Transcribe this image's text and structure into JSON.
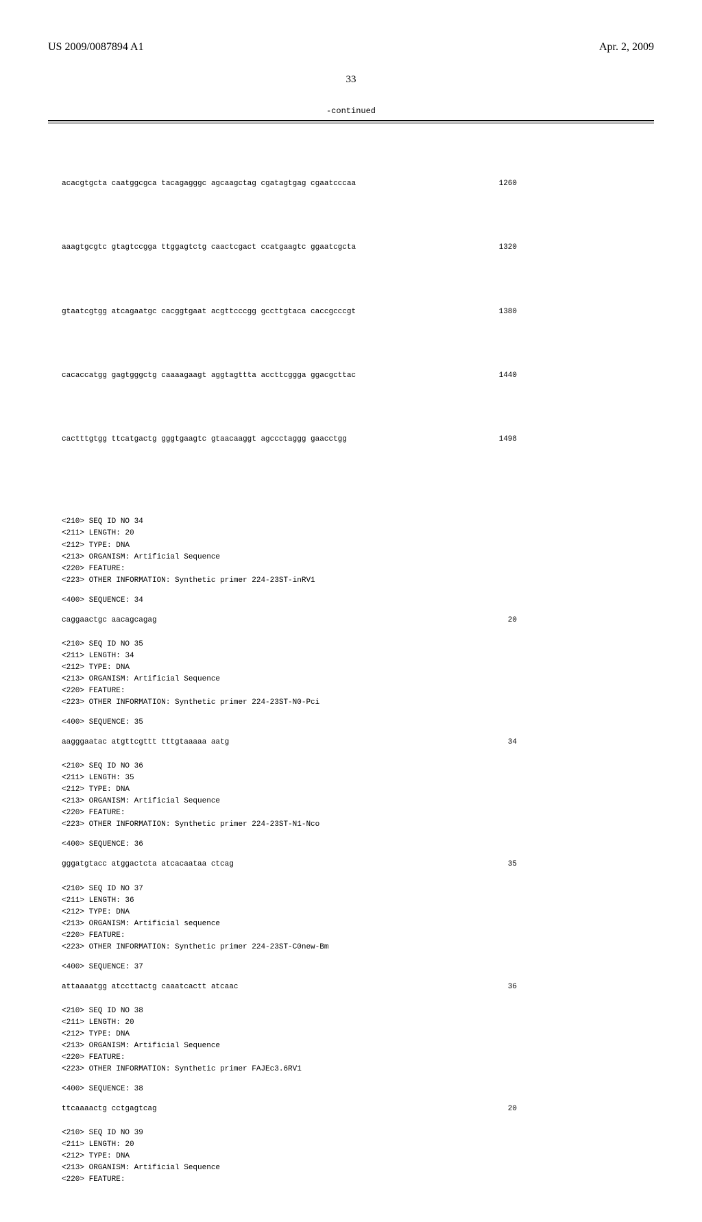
{
  "header": {
    "left": "US 2009/0087894 A1",
    "right": "Apr. 2, 2009"
  },
  "pageNumber": "33",
  "continuedLabel": "-continued",
  "seqLines": [
    {
      "seq": "acacgtgcta caatggcgca tacagagggc agcaagctag cgatagtgag cgaatcccaa",
      "num": "1260"
    },
    {
      "seq": "aaagtgcgtc gtagtccgga ttggagtctg caactcgact ccatgaagtc ggaatcgcta",
      "num": "1320"
    },
    {
      "seq": "gtaatcgtgg atcagaatgc cacggtgaat acgttcccgg gccttgtaca caccgcccgt",
      "num": "1380"
    },
    {
      "seq": "cacaccatgg gagtgggctg caaaagaagt aggtagttta accttcggga ggacgcttac",
      "num": "1440"
    },
    {
      "seq": "cactttgtgg ttcatgactg gggtgaagtc gtaacaaggt agccctaggg gaacctgg",
      "num": "1498"
    }
  ],
  "entries": [
    {
      "lines": [
        "<210> SEQ ID NO 34",
        "<211> LENGTH: 20",
        "<212> TYPE: DNA",
        "<213> ORGANISM: Artificial Sequence",
        "<220> FEATURE:",
        "<223> OTHER INFORMATION: Synthetic primer 224-23ST-inRV1"
      ],
      "sequenceLabel": "<400> SEQUENCE: 34",
      "seq": "caggaactgc aacagcagag",
      "num": "20"
    },
    {
      "lines": [
        "<210> SEQ ID NO 35",
        "<211> LENGTH: 34",
        "<212> TYPE: DNA",
        "<213> ORGANISM: Artificial Sequence",
        "<220> FEATURE:",
        "<223> OTHER INFORMATION: Synthetic primer 224-23ST-N0-Pci"
      ],
      "sequenceLabel": "<400> SEQUENCE: 35",
      "seq": "aagggaatac atgttcgttt tttgtaaaaa aatg",
      "num": "34"
    },
    {
      "lines": [
        "<210> SEQ ID NO 36",
        "<211> LENGTH: 35",
        "<212> TYPE: DNA",
        "<213> ORGANISM: Artificial Sequence",
        "<220> FEATURE:",
        "<223> OTHER INFORMATION: Synthetic primer 224-23ST-N1-Nco"
      ],
      "sequenceLabel": "<400> SEQUENCE: 36",
      "seq": "gggatgtacc atggactcta atcacaataa ctcag",
      "num": "35"
    },
    {
      "lines": [
        "<210> SEQ ID NO 37",
        "<211> LENGTH: 36",
        "<212> TYPE: DNA",
        "<213> ORGANISM: Artificial sequence",
        "<220> FEATURE:",
        "<223> OTHER INFORMATION: Synthetic primer 224-23ST-C0new-Bm"
      ],
      "sequenceLabel": "<400> SEQUENCE: 37",
      "seq": "attaaaatgg atccttactg caaatcactt atcaac",
      "num": "36"
    },
    {
      "lines": [
        "<210> SEQ ID NO 38",
        "<211> LENGTH: 20",
        "<212> TYPE: DNA",
        "<213> ORGANISM: Artificial Sequence",
        "<220> FEATURE:",
        "<223> OTHER INFORMATION: Synthetic primer FAJEc3.6RV1"
      ],
      "sequenceLabel": "<400> SEQUENCE: 38",
      "seq": "ttcaaaactg cctgagtcag",
      "num": "20"
    },
    {
      "lines": [
        "<210> SEQ ID NO 39",
        "<211> LENGTH: 20",
        "<212> TYPE: DNA",
        "<213> ORGANISM: Artificial Sequence",
        "<220> FEATURE:"
      ],
      "sequenceLabel": "",
      "seq": "",
      "num": ""
    }
  ]
}
